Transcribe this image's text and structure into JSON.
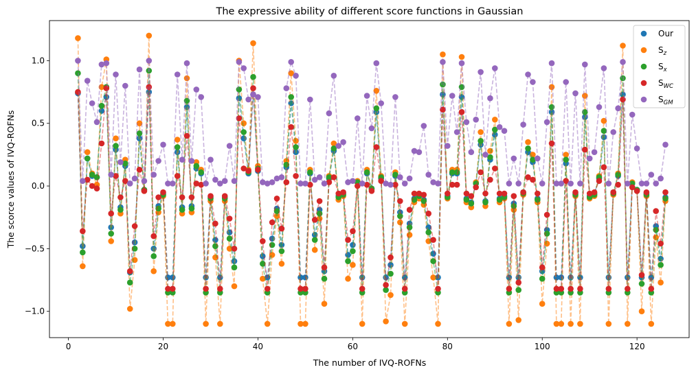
{
  "chart_data": {
    "type": "scatter",
    "title": "The expressive ability of different score functions in Gaussian",
    "xlabel": "The number of IVQ-ROFNs",
    "ylabel": "The scorce values  of IVQ-ROFNs",
    "xlim": [
      -4,
      131
    ],
    "ylim": [
      -1.21,
      1.32
    ],
    "xticks": [
      0,
      20,
      40,
      60,
      80,
      100,
      120
    ],
    "xtick_labels": [
      "0",
      "20",
      "40",
      "60",
      "80",
      "100",
      "120"
    ],
    "yticks": [
      -1.0,
      -0.5,
      0.0,
      0.5,
      1.0
    ],
    "ytick_labels": [
      "−1.0",
      "−0.5",
      "0.0",
      "0.5",
      "1.0"
    ],
    "legend_position": "top-right",
    "x": [
      2,
      3,
      4,
      5,
      6,
      7,
      8,
      9,
      10,
      11,
      12,
      13,
      14,
      15,
      16,
      17,
      18,
      19,
      20,
      21,
      22,
      23,
      24,
      25,
      26,
      27,
      28,
      29,
      30,
      31,
      32,
      33,
      34,
      35,
      36,
      37,
      38,
      39,
      40,
      41,
      42,
      43,
      44,
      45,
      46,
      47,
      48,
      49,
      50,
      51,
      52,
      53,
      54,
      55,
      56,
      57,
      58,
      59,
      60,
      61,
      62,
      63,
      64,
      65,
      66,
      67,
      68,
      69,
      70,
      71,
      72,
      73,
      74,
      75,
      76,
      77,
      78,
      79,
      80,
      81,
      82,
      83,
      84,
      85,
      86,
      87,
      88,
      89,
      90,
      91,
      92,
      93,
      94,
      95,
      96,
      97,
      98,
      99,
      100,
      101,
      102,
      103,
      104,
      105,
      106,
      107,
      108,
      109,
      110,
      111,
      112,
      113,
      114,
      115,
      116,
      117,
      118,
      119,
      120,
      121,
      122,
      123,
      124,
      125,
      126
    ],
    "series": [
      {
        "name": "Our",
        "label_main": "Our",
        "label_sub": "",
        "color": "#1f77b4",
        "values": [
          0.74,
          -0.48,
          0.22,
          0.08,
          0.07,
          0.6,
          0.71,
          -0.33,
          0.29,
          -0.17,
          0.16,
          -0.69,
          -0.45,
          0.38,
          -0.03,
          0.75,
          -0.5,
          -0.16,
          -0.06,
          -0.73,
          -0.73,
          0.27,
          -0.17,
          0.63,
          -0.16,
          0.14,
          0.1,
          -0.73,
          -0.09,
          -0.43,
          -0.73,
          -0.09,
          -0.37,
          -0.6,
          0.7,
          0.38,
          0.1,
          0.73,
          0.12,
          -0.56,
          -0.73,
          -0.42,
          -0.18,
          -0.47,
          0.15,
          0.66,
          0.27,
          -0.73,
          -0.73,
          0.1,
          -0.39,
          -0.19,
          -0.68,
          0.06,
          0.28,
          -0.08,
          -0.06,
          -0.55,
          -0.47,
          0.03,
          -0.73,
          0.1,
          -0.02,
          0.59,
          0.06,
          -0.73,
          -0.63,
          0.08,
          -0.21,
          -0.73,
          -0.3,
          -0.1,
          -0.07,
          -0.11,
          -0.33,
          -0.54,
          -0.73,
          0.73,
          -0.08,
          0.1,
          0.1,
          0.71,
          -0.1,
          -0.13,
          0.02,
          0.33,
          -0.12,
          0.21,
          0.41,
          -0.1,
          -0.08,
          -0.73,
          -0.14,
          -0.73,
          -0.05,
          0.27,
          0.19,
          -0.1,
          -0.68,
          -0.35,
          0.59,
          -0.73,
          -0.73,
          0.18,
          -0.73,
          -0.06,
          -0.73,
          0.55,
          -0.08,
          -0.06,
          0.06,
          0.39,
          -0.73,
          -0.05,
          0.08,
          0.73,
          -0.73,
          0.02,
          -0.03,
          -0.73,
          -0.06,
          -0.73,
          -0.32,
          -0.58,
          -0.09
        ]
      },
      {
        "name": "Sz",
        "label_main": "S",
        "label_sub": "z",
        "color": "#ff7f0e",
        "values": [
          1.18,
          -0.64,
          0.27,
          0.1,
          0.01,
          0.79,
          1.01,
          -0.44,
          0.38,
          -0.22,
          0.21,
          -0.98,
          -0.59,
          0.5,
          -0.04,
          1.2,
          -0.68,
          -0.21,
          -0.08,
          -1.1,
          -1.1,
          0.37,
          -0.22,
          0.86,
          -0.21,
          0.19,
          0.13,
          -1.1,
          -0.12,
          -0.57,
          -1.1,
          -0.12,
          -0.5,
          -0.8,
          1.0,
          0.5,
          0.13,
          1.14,
          0.16,
          -0.74,
          -1.1,
          -0.55,
          -0.24,
          -0.62,
          0.2,
          0.9,
          0.36,
          -1.1,
          -1.1,
          0.13,
          -0.51,
          -0.26,
          -0.94,
          0.08,
          0.34,
          -0.11,
          -0.08,
          -0.74,
          -0.63,
          0.04,
          -1.1,
          0.13,
          -0.03,
          0.76,
          0.08,
          -1.08,
          -0.87,
          0.11,
          -0.29,
          -1.1,
          -0.39,
          -0.13,
          -0.1,
          -0.15,
          -0.44,
          -0.73,
          -1.1,
          1.05,
          -0.1,
          0.13,
          0.13,
          1.03,
          -0.13,
          -0.17,
          0.03,
          0.43,
          -0.16,
          0.28,
          0.53,
          -0.13,
          -0.1,
          -1.1,
          -0.19,
          -1.07,
          -0.07,
          0.35,
          0.25,
          -0.13,
          -0.94,
          -0.46,
          0.79,
          -1.1,
          -1.1,
          0.25,
          -1.1,
          -0.08,
          -1.1,
          0.72,
          -0.1,
          -0.08,
          0.08,
          0.52,
          -1.1,
          -0.07,
          0.1,
          1.12,
          -1.1,
          0.03,
          -0.04,
          -1.0,
          -0.08,
          -1.1,
          -0.41,
          -0.77,
          -0.12
        ]
      },
      {
        "name": "Sx",
        "label_main": "S",
        "label_sub": "x",
        "color": "#2ca02c",
        "values": [
          0.9,
          -0.53,
          0.22,
          0.09,
          0.07,
          0.64,
          0.79,
          -0.38,
          0.32,
          -0.19,
          0.18,
          -0.77,
          -0.5,
          0.42,
          -0.03,
          0.92,
          -0.56,
          -0.18,
          -0.07,
          -0.85,
          -0.85,
          0.31,
          -0.19,
          0.68,
          -0.18,
          0.16,
          0.11,
          -0.85,
          -0.1,
          -0.48,
          -0.85,
          -0.1,
          -0.42,
          -0.65,
          0.77,
          0.43,
          0.11,
          0.87,
          0.14,
          -0.62,
          -0.85,
          -0.47,
          -0.2,
          -0.52,
          0.17,
          0.71,
          0.31,
          -0.85,
          -0.85,
          0.11,
          -0.43,
          -0.22,
          -0.74,
          0.07,
          0.3,
          -0.09,
          -0.07,
          -0.6,
          -0.52,
          0.03,
          -0.85,
          0.11,
          -0.02,
          0.62,
          0.07,
          -0.83,
          -0.7,
          0.09,
          -0.24,
          -0.85,
          -0.33,
          -0.11,
          -0.08,
          -0.12,
          -0.37,
          -0.6,
          -0.85,
          0.81,
          -0.09,
          0.11,
          0.11,
          0.79,
          -0.11,
          -0.14,
          0.02,
          0.36,
          -0.13,
          0.23,
          0.45,
          -0.11,
          -0.09,
          -0.85,
          -0.16,
          -0.83,
          -0.06,
          0.3,
          0.21,
          -0.11,
          -0.74,
          -0.38,
          0.63,
          -0.85,
          -0.85,
          0.21,
          -0.85,
          -0.07,
          -0.85,
          0.59,
          -0.09,
          -0.07,
          0.07,
          0.44,
          -0.85,
          -0.06,
          0.09,
          0.86,
          -0.85,
          0.02,
          -0.03,
          -0.78,
          -0.07,
          -0.85,
          -0.35,
          -0.63,
          -0.1
        ]
      },
      {
        "name": "SWC",
        "label_main": "S",
        "label_sub": "WC",
        "color": "#d62728",
        "values": [
          0.75,
          -0.36,
          0.05,
          0.0,
          -0.02,
          0.34,
          0.78,
          -0.22,
          0.08,
          -0.09,
          0.04,
          -0.68,
          -0.32,
          0.13,
          -0.04,
          0.79,
          -0.4,
          -0.09,
          -0.05,
          -0.82,
          -0.82,
          0.08,
          -0.09,
          0.4,
          -0.09,
          0.02,
          0.01,
          -0.82,
          -0.08,
          -0.3,
          -0.82,
          -0.08,
          -0.26,
          -0.5,
          0.54,
          0.14,
          0.12,
          0.78,
          0.13,
          -0.44,
          -0.82,
          -0.29,
          -0.1,
          -0.34,
          0.03,
          0.47,
          0.08,
          -0.82,
          -0.82,
          0.01,
          -0.27,
          -0.12,
          -0.65,
          0.03,
          0.07,
          -0.06,
          -0.05,
          -0.43,
          -0.36,
          0.0,
          -0.82,
          0.01,
          -0.04,
          0.31,
          0.04,
          -0.79,
          -0.57,
          0.01,
          -0.12,
          -0.82,
          -0.19,
          -0.06,
          -0.06,
          -0.07,
          -0.22,
          -0.43,
          -0.82,
          0.61,
          -0.06,
          0.01,
          0.01,
          0.59,
          -0.06,
          -0.08,
          -0.01,
          0.11,
          -0.06,
          0.05,
          0.14,
          -0.06,
          -0.06,
          -0.82,
          -0.08,
          -0.77,
          -0.05,
          0.07,
          0.05,
          -0.06,
          -0.65,
          -0.23,
          0.34,
          -0.82,
          -0.82,
          0.04,
          -0.82,
          -0.05,
          -0.82,
          0.29,
          -0.06,
          -0.05,
          0.04,
          0.15,
          -0.82,
          -0.05,
          0.01,
          0.69,
          -0.82,
          -0.01,
          -0.04,
          -0.71,
          -0.05,
          -0.82,
          -0.2,
          -0.46,
          -0.05
        ]
      },
      {
        "name": "SGM",
        "label_main": "S",
        "label_sub": "GM",
        "color": "#9467bd",
        "values": [
          1.0,
          0.04,
          0.84,
          0.66,
          0.51,
          0.97,
          0.98,
          0.09,
          0.89,
          0.19,
          0.8,
          0.02,
          0.06,
          0.93,
          0.04,
          1.0,
          0.09,
          0.2,
          0.33,
          0.02,
          0.02,
          0.89,
          0.21,
          0.98,
          0.2,
          0.77,
          0.71,
          0.02,
          0.21,
          0.05,
          0.02,
          0.04,
          0.32,
          0.04,
          0.99,
          0.94,
          0.69,
          0.73,
          0.71,
          0.03,
          0.02,
          0.03,
          0.06,
          0.07,
          0.78,
          0.99,
          0.88,
          0.02,
          0.02,
          0.69,
          0.05,
          0.07,
          0.02,
          0.58,
          0.88,
          0.32,
          0.35,
          0.03,
          0.04,
          0.54,
          0.02,
          0.72,
          0.46,
          0.98,
          0.66,
          0.02,
          0.01,
          0.71,
          0.07,
          0.02,
          0.06,
          0.28,
          0.27,
          0.48,
          0.09,
          0.03,
          0.02,
          0.99,
          0.32,
          0.72,
          0.43,
          0.98,
          0.51,
          0.27,
          0.53,
          0.91,
          0.25,
          0.7,
          0.94,
          0.47,
          0.44,
          0.02,
          0.22,
          0.02,
          0.49,
          0.89,
          0.83,
          0.22,
          0.02,
          0.51,
          0.98,
          0.02,
          0.02,
          0.83,
          0.02,
          0.74,
          0.02,
          0.97,
          0.22,
          0.27,
          0.63,
          0.94,
          0.02,
          0.43,
          0.62,
          0.99,
          0.02,
          0.57,
          0.3,
          0.02,
          0.02,
          0.09,
          0.02,
          0.06,
          0.33
        ]
      }
    ]
  }
}
